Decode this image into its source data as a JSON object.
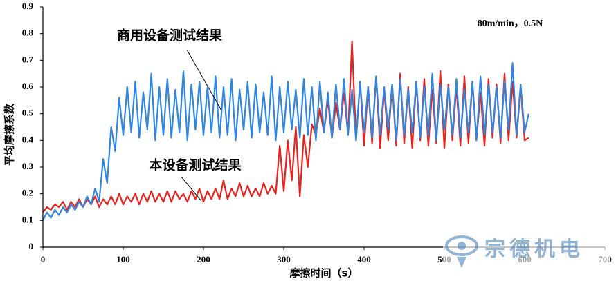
{
  "chart_data": {
    "type": "line",
    "annotations": [
      "商用设备测试结果",
      "本设备测试结果",
      "80m/min，0.5N"
    ],
    "xlabel": "摩擦时间（s）",
    "ylabel": "平均摩擦系数",
    "watermark": "宗德机电",
    "xlim": [
      0,
      700
    ],
    "xticks": [
      0,
      100,
      200,
      300,
      400,
      500,
      600,
      700
    ],
    "ylim": [
      0,
      0.9
    ],
    "yticks": [
      0,
      0.1,
      0.2,
      0.3,
      0.4,
      0.5,
      0.6,
      0.7,
      0.8,
      0.9
    ],
    "x": [
      0,
      5,
      10,
      15,
      20,
      25,
      30,
      35,
      40,
      45,
      50,
      55,
      60,
      65,
      70,
      75,
      80,
      85,
      90,
      95,
      100,
      105,
      110,
      115,
      120,
      125,
      130,
      135,
      140,
      145,
      150,
      155,
      160,
      165,
      170,
      175,
      180,
      185,
      190,
      195,
      200,
      205,
      210,
      215,
      220,
      225,
      230,
      235,
      240,
      245,
      250,
      255,
      260,
      265,
      270,
      275,
      280,
      285,
      290,
      295,
      300,
      305,
      310,
      315,
      320,
      325,
      330,
      335,
      340,
      345,
      350,
      355,
      360,
      365,
      370,
      375,
      380,
      385,
      390,
      395,
      400,
      405,
      410,
      415,
      420,
      425,
      430,
      435,
      440,
      445,
      450,
      455,
      460,
      465,
      470,
      475,
      480,
      485,
      490,
      495,
      500,
      505,
      510,
      515,
      520,
      525,
      530,
      535,
      540,
      545,
      550,
      555,
      560,
      565,
      570,
      575,
      580,
      585,
      590,
      595,
      600,
      605
    ],
    "series": [
      {
        "name": "本设备测试结果",
        "color": "#e8231e",
        "values": [
          0.13,
          0.15,
          0.14,
          0.16,
          0.15,
          0.17,
          0.14,
          0.17,
          0.15,
          0.18,
          0.15,
          0.18,
          0.16,
          0.19,
          0.15,
          0.18,
          0.16,
          0.19,
          0.16,
          0.2,
          0.16,
          0.19,
          0.17,
          0.2,
          0.16,
          0.2,
          0.17,
          0.21,
          0.17,
          0.2,
          0.17,
          0.21,
          0.17,
          0.21,
          0.18,
          0.2,
          0.17,
          0.21,
          0.18,
          0.22,
          0.17,
          0.21,
          0.18,
          0.22,
          0.18,
          0.25,
          0.18,
          0.22,
          0.19,
          0.24,
          0.19,
          0.23,
          0.19,
          0.22,
          0.19,
          0.24,
          0.2,
          0.23,
          0.2,
          0.38,
          0.21,
          0.4,
          0.25,
          0.45,
          0.19,
          0.42,
          0.3,
          0.46,
          0.42,
          0.52,
          0.43,
          0.55,
          0.41,
          0.54,
          0.44,
          0.58,
          0.42,
          0.77,
          0.4,
          0.62,
          0.38,
          0.6,
          0.39,
          0.64,
          0.37,
          0.59,
          0.4,
          0.61,
          0.38,
          0.65,
          0.39,
          0.6,
          0.37,
          0.62,
          0.4,
          0.63,
          0.38,
          0.59,
          0.39,
          0.66,
          0.37,
          0.61,
          0.4,
          0.6,
          0.38,
          0.64,
          0.39,
          0.62,
          0.4,
          0.58,
          0.38,
          0.63,
          0.41,
          0.61,
          0.39,
          0.65,
          0.4,
          0.62,
          0.41,
          0.6,
          0.4,
          0.41
        ]
      },
      {
        "name": "商用设备测试结果",
        "color": "#2f86e0",
        "values": [
          0.1,
          0.13,
          0.11,
          0.14,
          0.12,
          0.15,
          0.13,
          0.16,
          0.14,
          0.17,
          0.15,
          0.19,
          0.16,
          0.22,
          0.17,
          0.33,
          0.24,
          0.45,
          0.36,
          0.56,
          0.42,
          0.6,
          0.43,
          0.62,
          0.41,
          0.58,
          0.44,
          0.65,
          0.4,
          0.6,
          0.42,
          0.63,
          0.41,
          0.59,
          0.43,
          0.66,
          0.4,
          0.61,
          0.44,
          0.62,
          0.42,
          0.6,
          0.43,
          0.64,
          0.41,
          0.6,
          0.42,
          0.63,
          0.4,
          0.59,
          0.44,
          0.62,
          0.41,
          0.61,
          0.43,
          0.58,
          0.42,
          0.64,
          0.4,
          0.6,
          0.43,
          0.62,
          0.44,
          0.59,
          0.41,
          0.63,
          0.42,
          0.6,
          0.4,
          0.62,
          0.43,
          0.58,
          0.41,
          0.61,
          0.44,
          0.63,
          0.42,
          0.59,
          0.4,
          0.62,
          0.43,
          0.6,
          0.41,
          0.64,
          0.42,
          0.6,
          0.44,
          0.61,
          0.4,
          0.63,
          0.42,
          0.59,
          0.43,
          0.62,
          0.41,
          0.6,
          0.42,
          0.65,
          0.4,
          0.61,
          0.44,
          0.6,
          0.42,
          0.63,
          0.41,
          0.59,
          0.43,
          0.62,
          0.4,
          0.64,
          0.42,
          0.61,
          0.43,
          0.6,
          0.41,
          0.62,
          0.44,
          0.69,
          0.42,
          0.61,
          0.43,
          0.5
        ]
      }
    ]
  }
}
